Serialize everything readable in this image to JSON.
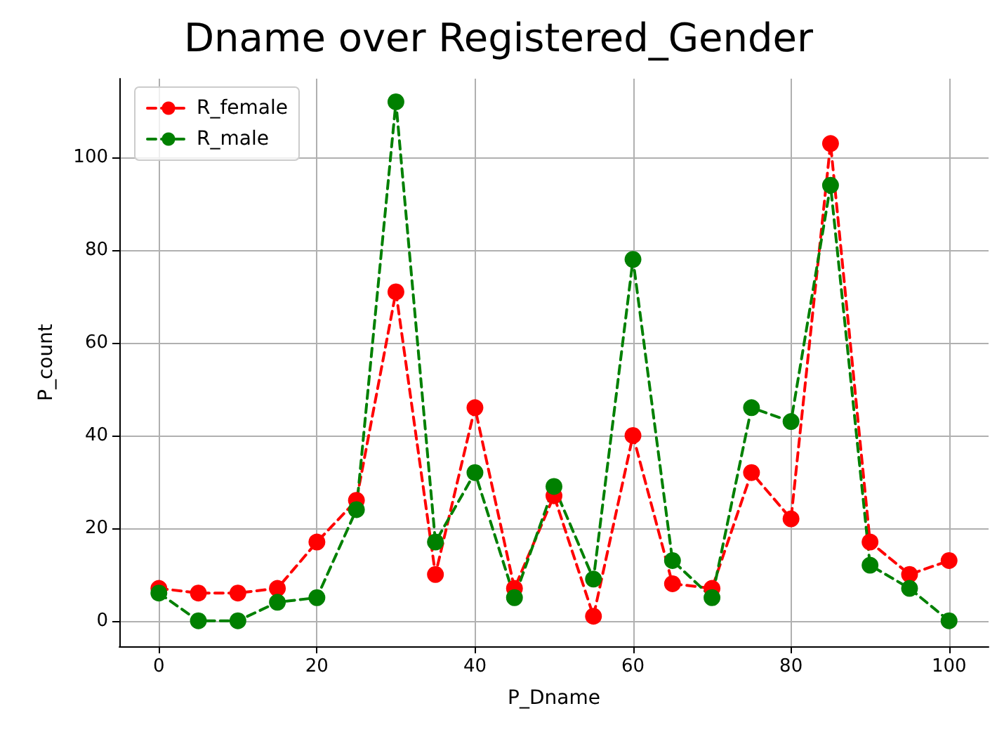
{
  "chart_data": {
    "type": "line",
    "title": "Dname over Registered_Gender",
    "xlabel": "P_Dname",
    "ylabel": "P_count",
    "x": [
      0,
      5,
      10,
      15,
      20,
      25,
      30,
      35,
      40,
      45,
      50,
      55,
      60,
      65,
      70,
      75,
      80,
      85,
      90,
      95,
      100
    ],
    "series": [
      {
        "name": "R_female",
        "color": "#ff0000",
        "values": [
          7,
          6,
          6,
          7,
          17,
          26,
          71,
          10,
          46,
          7,
          27,
          1,
          40,
          8,
          7,
          32,
          22,
          103,
          17,
          10,
          13
        ]
      },
      {
        "name": "R_male",
        "color": "#008000",
        "values": [
          6,
          0,
          0,
          4,
          5,
          24,
          112,
          17,
          32,
          5,
          29,
          9,
          78,
          13,
          5,
          46,
          43,
          94,
          12,
          7,
          0
        ]
      }
    ],
    "xlim": [
      -5,
      105
    ],
    "xticks": [
      0,
      20,
      40,
      60,
      80,
      100
    ],
    "ylim": [
      -5.5,
      117
    ],
    "yticks": [
      0,
      20,
      40,
      60,
      80,
      100
    ],
    "grid": true,
    "legend": "top left",
    "marker": "circle",
    "line_style": "dashed"
  }
}
